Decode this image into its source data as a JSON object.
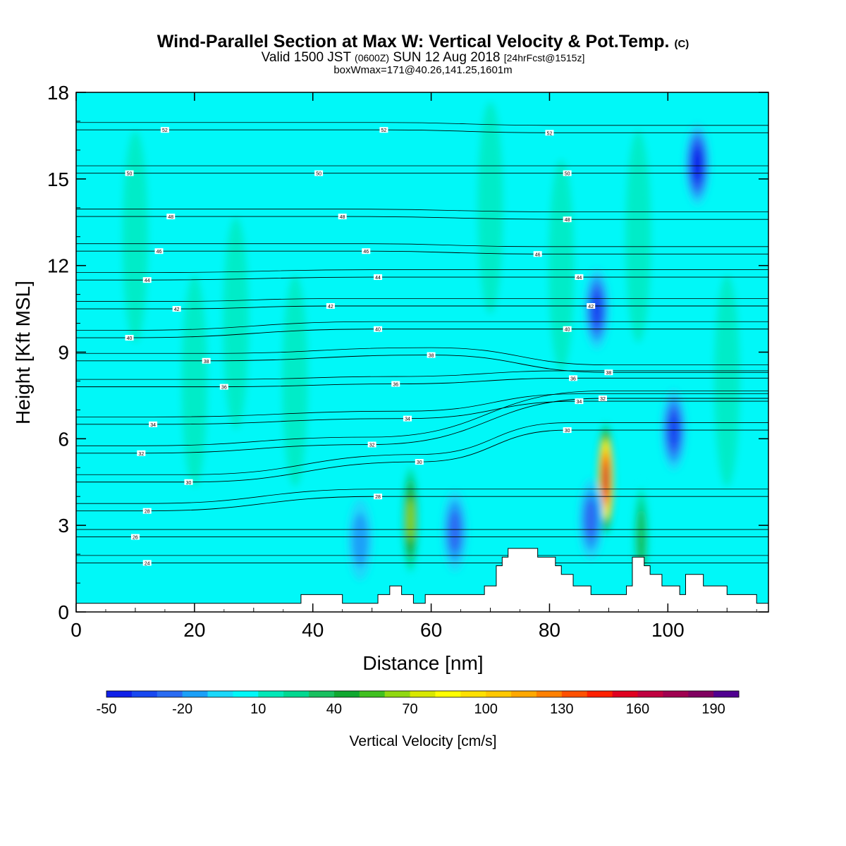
{
  "title": {
    "main": "Wind-Parallel Section at Max W: Vertical Velocity & Pot.Temp.",
    "copyright": "(C)",
    "valid_prefix": "Valid 1500 JST",
    "valid_utc": "(0600Z)",
    "valid_date": "SUN 12 Aug 2018",
    "forecast": "[24hrFcst@1515z]",
    "box": "boxWmax=171@40.26,141.25,1601m"
  },
  "chart_data": {
    "type": "heatmap",
    "xlabel": "Distance [nm]",
    "ylabel": "Height [Kft MSL]",
    "xlim": [
      0,
      117
    ],
    "ylim": [
      0,
      18
    ],
    "x_ticks": [
      "0",
      "20",
      "40",
      "60",
      "80",
      "100"
    ],
    "y_ticks": [
      "0",
      "3",
      "6",
      "9",
      "12",
      "15",
      "18"
    ],
    "colorbar": {
      "label": "Vertical Velocity [cm/s]",
      "tick_labels": [
        "-50",
        "-20",
        "10",
        "40",
        "70",
        "100",
        "130",
        "160",
        "190"
      ],
      "levels": [
        -50,
        -40,
        -30,
        -20,
        -10,
        0,
        10,
        20,
        30,
        40,
        50,
        60,
        70,
        80,
        90,
        100,
        110,
        120,
        130,
        140,
        150,
        160,
        170,
        180,
        190,
        200
      ],
      "colors": [
        "#1020e8",
        "#1848f0",
        "#2a6cf2",
        "#1aa0f8",
        "#1ad8fa",
        "#00f8f8",
        "#00e8b8",
        "#00d890",
        "#18c060",
        "#10a830",
        "#40c020",
        "#90d810",
        "#d8e800",
        "#ffff00",
        "#ffe000",
        "#ffc800",
        "#ffa800",
        "#ff8000",
        "#ff5000",
        "#ff2000",
        "#e00020",
        "#c00040",
        "#a00050",
        "#800060",
        "#500090"
      ]
    },
    "field_features": [
      {
        "kind": "updraft",
        "x": 89.5,
        "y": 4.6,
        "peak_w": 171
      },
      {
        "kind": "updraft",
        "x": 56.5,
        "y": 3.2,
        "peak_w": 70
      },
      {
        "kind": "updraft",
        "x": 95.5,
        "y": 2.6,
        "peak_w": 40
      },
      {
        "kind": "downdraft",
        "x": 88,
        "y": 10.5,
        "peak_w": -40
      },
      {
        "kind": "downdraft",
        "x": 105,
        "y": 15.5,
        "peak_w": -50
      },
      {
        "kind": "downdraft",
        "x": 101,
        "y": 6.3,
        "peak_w": -40
      },
      {
        "kind": "downdraft",
        "x": 64,
        "y": 2.8,
        "peak_w": -30
      },
      {
        "kind": "downdraft",
        "x": 48,
        "y": 2.5,
        "peak_w": -20
      },
      {
        "kind": "downdraft",
        "x": 87,
        "y": 3.2,
        "peak_w": -30
      }
    ],
    "terrain": [
      [
        0,
        0.3
      ],
      [
        38,
        0.3
      ],
      [
        38,
        0.6
      ],
      [
        45,
        0.6
      ],
      [
        45,
        0.3
      ],
      [
        51,
        0.3
      ],
      [
        51,
        0.6
      ],
      [
        53,
        0.6
      ],
      [
        53,
        0.9
      ],
      [
        55,
        0.9
      ],
      [
        55,
        0.6
      ],
      [
        57,
        0.6
      ],
      [
        57,
        0.3
      ],
      [
        59,
        0.3
      ],
      [
        59,
        0.6
      ],
      [
        69,
        0.6
      ],
      [
        69,
        0.9
      ],
      [
        71,
        0.9
      ],
      [
        71,
        1.6
      ],
      [
        72,
        1.6
      ],
      [
        72,
        1.9
      ],
      [
        73,
        1.9
      ],
      [
        73,
        2.2
      ],
      [
        78,
        2.2
      ],
      [
        78,
        1.9
      ],
      [
        81,
        1.9
      ],
      [
        81,
        1.6
      ],
      [
        82,
        1.6
      ],
      [
        82,
        1.3
      ],
      [
        84,
        1.3
      ],
      [
        84,
        0.9
      ],
      [
        87,
        0.9
      ],
      [
        87,
        0.6
      ],
      [
        93,
        0.6
      ],
      [
        93,
        0.9
      ],
      [
        94,
        0.9
      ],
      [
        94,
        1.9
      ],
      [
        96,
        1.9
      ],
      [
        96,
        1.6
      ],
      [
        97,
        1.6
      ],
      [
        97,
        1.3
      ],
      [
        99,
        1.3
      ],
      [
        99,
        0.9
      ],
      [
        102,
        0.9
      ],
      [
        102,
        0.6
      ],
      [
        103,
        0.6
      ],
      [
        103,
        1.3
      ],
      [
        106,
        1.3
      ],
      [
        106,
        0.9
      ],
      [
        110,
        0.9
      ],
      [
        110,
        0.6
      ],
      [
        115,
        0.6
      ],
      [
        115,
        0.3
      ],
      [
        117,
        0.3
      ]
    ],
    "isentropes": {
      "units": "C",
      "labels": [
        {
          "text": "52",
          "x": 15,
          "y": 16.7
        },
        {
          "text": "52",
          "x": 52,
          "y": 16.7
        },
        {
          "text": "52",
          "x": 80,
          "y": 16.6
        },
        {
          "text": "50",
          "x": 9,
          "y": 15.2
        },
        {
          "text": "50",
          "x": 41,
          "y": 15.2
        },
        {
          "text": "50",
          "x": 83,
          "y": 15.2
        },
        {
          "text": "48",
          "x": 16,
          "y": 13.7
        },
        {
          "text": "48",
          "x": 45,
          "y": 13.7
        },
        {
          "text": "48",
          "x": 83,
          "y": 13.6
        },
        {
          "text": "46",
          "x": 14,
          "y": 12.5
        },
        {
          "text": "46",
          "x": 49,
          "y": 12.5
        },
        {
          "text": "46",
          "x": 78,
          "y": 12.4
        },
        {
          "text": "44",
          "x": 12,
          "y": 11.5
        },
        {
          "text": "44",
          "x": 51,
          "y": 11.6
        },
        {
          "text": "44",
          "x": 85,
          "y": 11.6
        },
        {
          "text": "42",
          "x": 17,
          "y": 10.5
        },
        {
          "text": "42",
          "x": 43,
          "y": 10.6
        },
        {
          "text": "42",
          "x": 87,
          "y": 10.6
        },
        {
          "text": "40",
          "x": 9,
          "y": 9.5
        },
        {
          "text": "40",
          "x": 51,
          "y": 9.8
        },
        {
          "text": "40",
          "x": 83,
          "y": 9.8
        },
        {
          "text": "38",
          "x": 22,
          "y": 8.7
        },
        {
          "text": "38",
          "x": 60,
          "y": 8.9
        },
        {
          "text": "38",
          "x": 90,
          "y": 8.3
        },
        {
          "text": "36",
          "x": 25,
          "y": 7.8
        },
        {
          "text": "36",
          "x": 54,
          "y": 7.9
        },
        {
          "text": "36",
          "x": 84,
          "y": 8.1
        },
        {
          "text": "34",
          "x": 13,
          "y": 6.5
        },
        {
          "text": "34",
          "x": 56,
          "y": 6.7
        },
        {
          "text": "34",
          "x": 85,
          "y": 7.3
        },
        {
          "text": "32",
          "x": 11,
          "y": 5.5
        },
        {
          "text": "32",
          "x": 50,
          "y": 5.8
        },
        {
          "text": "32",
          "x": 89,
          "y": 7.4
        },
        {
          "text": "30",
          "x": 19,
          "y": 4.5
        },
        {
          "text": "30",
          "x": 58,
          "y": 5.2
        },
        {
          "text": "30",
          "x": 83,
          "y": 6.3
        },
        {
          "text": "28",
          "x": 12,
          "y": 3.5
        },
        {
          "text": "28",
          "x": 51,
          "y": 4.0
        },
        {
          "text": "26",
          "x": 10,
          "y": 2.6
        },
        {
          "text": "24",
          "x": 12,
          "y": 1.7
        }
      ]
    }
  }
}
